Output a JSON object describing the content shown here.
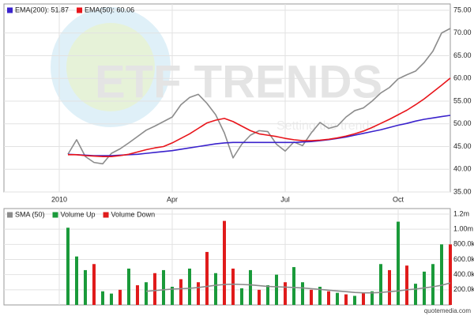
{
  "watermark": "ETF TRENDS",
  "watermark_tagline": "Setting the trends",
  "credit": "quotemedia.com",
  "chart_data": [
    {
      "type": "line",
      "categories": [
        null,
        null,
        null,
        null,
        null,
        null,
        "2010",
        null,
        null,
        null,
        null,
        null,
        null,
        null,
        null,
        null,
        null,
        null,
        null,
        "Apr",
        null,
        null,
        null,
        null,
        null,
        null,
        null,
        null,
        null,
        null,
        null,
        null,
        "Jul",
        null,
        null,
        null,
        null,
        null,
        null,
        null,
        null,
        null,
        null,
        null,
        null,
        "Oct",
        null,
        null,
        null,
        null,
        null,
        null
      ],
      "series": [
        {
          "color": "#8c8c8c",
          "values": [
            null,
            null,
            null,
            null,
            null,
            null,
            null,
            43.3,
            46.5,
            42.8,
            41.5,
            41.2,
            43.5,
            44.5,
            45.8,
            47.2,
            48.6,
            49.5,
            50.5,
            51.5,
            54.2,
            55.8,
            56.5,
            54.5,
            52.0,
            48.0,
            42.5,
            45.5,
            47.5,
            48.5,
            48.3,
            45.5,
            44.0,
            46.0,
            45.2,
            48.0,
            50.3,
            49.0,
            49.5,
            51.5,
            52.9,
            53.5,
            55.0,
            56.8,
            58.0,
            59.9,
            60.8,
            61.6,
            63.5,
            66.0,
            70.0,
            71.0
          ]
        },
        {
          "name": "EMA(200): 51.87",
          "color": "#3a22cc",
          "values": [
            null,
            null,
            null,
            null,
            null,
            null,
            null,
            43.3,
            43.2,
            43.1,
            43.0,
            43.0,
            43.0,
            43.1,
            43.2,
            43.3,
            43.5,
            43.7,
            43.9,
            44.1,
            44.4,
            44.7,
            45.0,
            45.3,
            45.6,
            45.8,
            45.9,
            45.9,
            45.9,
            45.9,
            45.9,
            45.9,
            45.9,
            45.9,
            46.0,
            46.1,
            46.3,
            46.5,
            46.8,
            47.1,
            47.5,
            47.9,
            48.3,
            48.7,
            49.2,
            49.7,
            50.1,
            50.6,
            51.0,
            51.3,
            51.6,
            51.87
          ]
        },
        {
          "name": "EMA(50): 60.06",
          "color": "#e8141a",
          "values": [
            null,
            null,
            null,
            null,
            null,
            null,
            null,
            43.2,
            43.2,
            43.0,
            42.9,
            42.8,
            42.8,
            43.0,
            43.3,
            43.8,
            44.3,
            44.7,
            45.0,
            45.8,
            46.8,
            47.8,
            49.0,
            50.2,
            50.8,
            51.2,
            50.5,
            49.5,
            48.5,
            47.8,
            47.5,
            47.2,
            46.8,
            46.5,
            46.3,
            46.3,
            46.4,
            46.6,
            46.9,
            47.3,
            47.8,
            48.4,
            49.2,
            50.1,
            51.0,
            52.0,
            53.0,
            54.2,
            55.5,
            57.0,
            58.5,
            60.06
          ]
        }
      ],
      "ylim": [
        35,
        75
      ],
      "yticks": [
        {
          "value": 35,
          "label": "35.00"
        },
        {
          "value": 40,
          "label": "40.00"
        },
        {
          "value": 45,
          "label": "45.00"
        },
        {
          "value": 50,
          "label": "50.00"
        },
        {
          "value": 55,
          "label": "55.00"
        },
        {
          "value": 60,
          "label": "60.00"
        },
        {
          "value": 65,
          "label": "65.00"
        },
        {
          "value": 70,
          "label": "70.00"
        },
        {
          "value": 75,
          "label": "75.00"
        }
      ],
      "grid": true
    },
    {
      "type": "bar",
      "series": [
        {
          "name": "SMA (50)",
          "type": "line",
          "color": "#8c8c8c",
          "values": [
            null,
            null,
            null,
            null,
            null,
            null,
            null,
            null,
            null,
            null,
            null,
            null,
            null,
            null,
            null,
            null,
            180000,
            190000,
            200000,
            210000,
            215000,
            220000,
            230000,
            245000,
            260000,
            270000,
            275000,
            270000,
            265000,
            255000,
            245000,
            240000,
            235000,
            230000,
            225000,
            215000,
            205000,
            195000,
            185000,
            175000,
            165000,
            160000,
            160000,
            165000,
            175000,
            185000,
            200000,
            210000,
            225000,
            240000,
            260000,
            290000
          ]
        },
        {
          "name": "Volume Up",
          "color": "#1a9a3a",
          "values": [
            null,
            null,
            null,
            null,
            null,
            null,
            null,
            1020000,
            640000,
            460000,
            null,
            180000,
            150000,
            null,
            480000,
            null,
            300000,
            null,
            460000,
            240000,
            null,
            480000,
            null,
            null,
            420000,
            null,
            null,
            220000,
            460000,
            null,
            260000,
            400000,
            null,
            500000,
            300000,
            null,
            240000,
            null,
            160000,
            null,
            120000,
            null,
            180000,
            540000,
            null,
            1100000,
            null,
            280000,
            440000,
            540000,
            800000,
            null
          ]
        },
        {
          "name": "Volume Down",
          "color": "#e01b1b",
          "values": [
            null,
            null,
            null,
            null,
            null,
            null,
            null,
            null,
            null,
            null,
            540000,
            null,
            null,
            200000,
            null,
            260000,
            null,
            420000,
            null,
            null,
            340000,
            null,
            300000,
            700000,
            null,
            1110000,
            480000,
            null,
            null,
            200000,
            null,
            null,
            300000,
            null,
            null,
            200000,
            null,
            180000,
            null,
            140000,
            null,
            160000,
            null,
            null,
            460000,
            null,
            520000,
            null,
            null,
            null,
            null,
            800000
          ]
        }
      ],
      "ylim": [
        0,
        1200000
      ],
      "yticks": [
        {
          "value": 200000,
          "label": "200.0k"
        },
        {
          "value": 400000,
          "label": "400.0k"
        },
        {
          "value": 600000,
          "label": "600.0k"
        },
        {
          "value": 800000,
          "label": "800.0k"
        },
        {
          "value": 1000000,
          "label": "1.00m"
        },
        {
          "value": 1200000,
          "label": "1.2m"
        }
      ],
      "grid": true
    }
  ]
}
